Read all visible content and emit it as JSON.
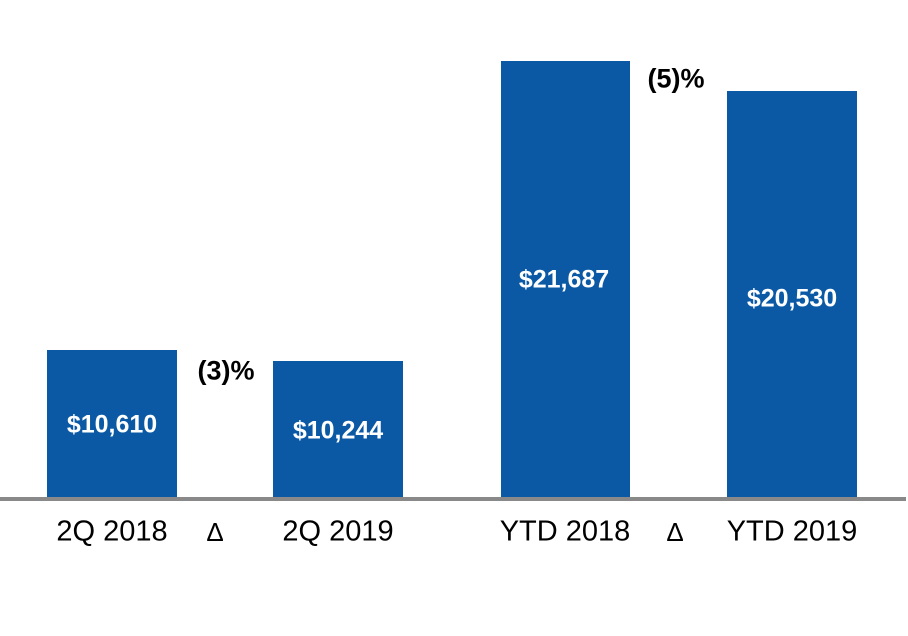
{
  "chart_data": {
    "type": "bar",
    "title": "",
    "categories": [
      "2Q 2018",
      "2Q 2019",
      "YTD 2018",
      "YTD 2019"
    ],
    "values": [
      10610,
      10244,
      21687,
      20530
    ],
    "value_labels": [
      "$10,610",
      "$10,244",
      "$21,687",
      "$20,530"
    ],
    "delta_annotations": [
      {
        "between": [
          "2Q 2018",
          "2Q 2019"
        ],
        "label": "(3)%"
      },
      {
        "between": [
          "YTD 2018",
          "YTD 2019"
        ],
        "label": "(5)%"
      }
    ],
    "x_axis_labels": [
      "2Q 2018",
      "Δ",
      "2Q 2019",
      "YTD 2018",
      "Δ",
      "YTD 2019"
    ],
    "colors": {
      "bar": "#0B59A5",
      "axis_line": "#898989",
      "value_label": "#FFFFFF",
      "annotation": "#000000"
    },
    "layout_hints": {
      "gridlines": false,
      "legend": "none",
      "y_axis_ticks": "none",
      "value_labels_inside_bars": true,
      "baseline_axis_line": true
    }
  }
}
